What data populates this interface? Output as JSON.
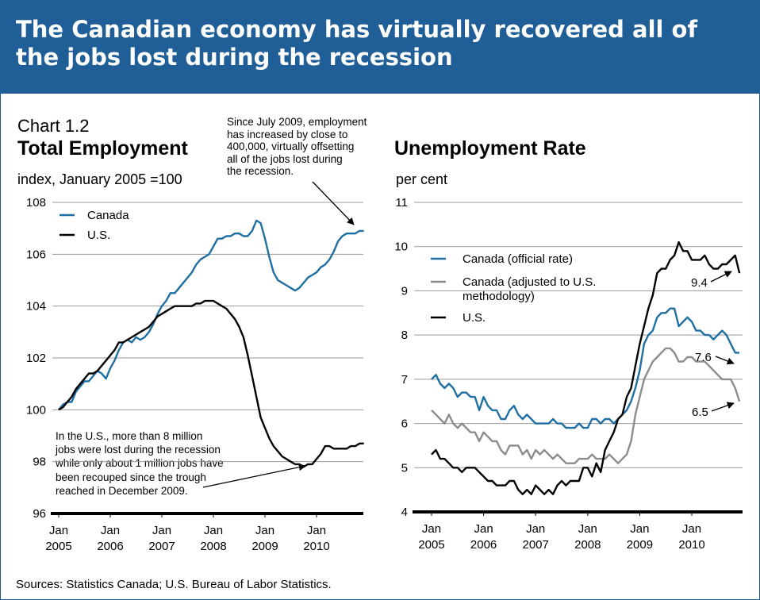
{
  "banner": {
    "title": "The Canadian economy has virtually recovered all of the jobs lost during the recession"
  },
  "chart_number": "Chart 1.2",
  "footer": {
    "source": "Sources: Statistics Canada; U.S. Bureau of Labor Statistics."
  },
  "colors": {
    "banner": "#1f5e96",
    "canada": "#1f6fa3",
    "canada_adjusted": "#8c8c8c",
    "us": "#000000"
  },
  "chart_data": [
    {
      "type": "line",
      "title": "Total Employment",
      "ylabel": "index, January 2005 =100",
      "ylim": [
        96,
        108
      ],
      "yticks": [
        96,
        98,
        100,
        102,
        104,
        106,
        108
      ],
      "x_range": [
        "2005-01",
        "2010-12"
      ],
      "x_tick_labels": [
        {
          "month": "Jan",
          "year": "2005"
        },
        {
          "month": "Jan",
          "year": "2006"
        },
        {
          "month": "Jan",
          "year": "2007"
        },
        {
          "month": "Jan",
          "year": "2008"
        },
        {
          "month": "Jan",
          "year": "2009"
        },
        {
          "month": "Jan",
          "year": "2010"
        }
      ],
      "legend_position": "top-left",
      "grid": "horizontal",
      "annotations": [
        "Since July 2009, employment\nhas increased by close to\n400,000, virtually offsetting\nall of the jobs lost during\nthe recession.",
        "In the U.S., more than 8 million\njobs were lost during the recession\nwhile only about 1 million jobs have\nbeen recouped since the trough\nreached in December 2009."
      ],
      "series": [
        {
          "name": "Canada",
          "color": "#1f6fa3",
          "values": [
            100.0,
            100.2,
            100.3,
            100.3,
            100.7,
            100.9,
            101.1,
            101.1,
            101.3,
            101.5,
            101.4,
            101.2,
            101.6,
            101.9,
            102.3,
            102.6,
            102.7,
            102.6,
            102.8,
            102.7,
            102.8,
            103.0,
            103.3,
            103.7,
            104.0,
            104.2,
            104.5,
            104.5,
            104.7,
            104.9,
            105.1,
            105.3,
            105.6,
            105.8,
            105.9,
            106.0,
            106.3,
            106.6,
            106.6,
            106.7,
            106.7,
            106.8,
            106.8,
            106.7,
            106.7,
            106.9,
            107.3,
            107.2,
            106.6,
            105.9,
            105.3,
            105.0,
            104.9,
            104.8,
            104.7,
            104.6,
            104.7,
            104.9,
            105.1,
            105.2,
            105.3,
            105.5,
            105.6,
            105.8,
            106.1,
            106.5,
            106.7,
            106.8,
            106.8,
            106.8,
            106.9,
            106.9
          ]
        },
        {
          "name": "U.S.",
          "color": "#000000",
          "values": [
            100.0,
            100.1,
            100.3,
            100.5,
            100.8,
            101.0,
            101.2,
            101.4,
            101.4,
            101.5,
            101.7,
            101.9,
            102.1,
            102.3,
            102.6,
            102.6,
            102.7,
            102.8,
            102.9,
            103.0,
            103.1,
            103.2,
            103.4,
            103.6,
            103.7,
            103.8,
            103.9,
            104.0,
            104.0,
            104.0,
            104.0,
            104.0,
            104.1,
            104.1,
            104.2,
            104.2,
            104.2,
            104.1,
            104.0,
            103.9,
            103.7,
            103.5,
            103.2,
            102.8,
            102.1,
            101.3,
            100.5,
            99.7,
            99.3,
            98.9,
            98.6,
            98.4,
            98.2,
            98.1,
            98.0,
            97.9,
            97.9,
            97.8,
            97.9,
            97.9,
            98.1,
            98.3,
            98.6,
            98.6,
            98.5,
            98.5,
            98.5,
            98.5,
            98.6,
            98.6,
            98.7,
            98.7
          ]
        }
      ]
    },
    {
      "type": "line",
      "title": "Unemployment Rate",
      "ylabel": "per cent",
      "ylim": [
        4,
        11
      ],
      "yticks": [
        4,
        5,
        6,
        7,
        8,
        9,
        10,
        11
      ],
      "x_range": [
        "2005-01",
        "2010-12"
      ],
      "x_tick_labels": [
        {
          "month": "Jan",
          "year": "2005"
        },
        {
          "month": "Jan",
          "year": "2006"
        },
        {
          "month": "Jan",
          "year": "2007"
        },
        {
          "month": "Jan",
          "year": "2008"
        },
        {
          "month": "Jan",
          "year": "2009"
        },
        {
          "month": "Jan",
          "year": "2010"
        }
      ],
      "legend_position": "center-left",
      "grid": "horizontal",
      "end_labels": [
        "9.4",
        "7.6",
        "6.5"
      ],
      "series": [
        {
          "name": "Canada (official rate)",
          "color": "#1f6fa3",
          "end_label": "7.6",
          "values": [
            7.0,
            7.1,
            6.9,
            6.8,
            6.9,
            6.8,
            6.6,
            6.7,
            6.7,
            6.6,
            6.6,
            6.3,
            6.6,
            6.4,
            6.3,
            6.3,
            6.1,
            6.1,
            6.3,
            6.4,
            6.2,
            6.1,
            6.2,
            6.1,
            6.0,
            6.0,
            6.0,
            6.0,
            6.1,
            6.0,
            6.0,
            5.9,
            5.9,
            5.9,
            6.0,
            5.9,
            5.9,
            6.1,
            6.1,
            6.0,
            6.1,
            6.1,
            6.0,
            6.1,
            6.2,
            6.3,
            6.5,
            6.8,
            7.2,
            7.8,
            8.0,
            8.1,
            8.4,
            8.5,
            8.5,
            8.6,
            8.6,
            8.2,
            8.3,
            8.4,
            8.3,
            8.1,
            8.1,
            8.0,
            8.0,
            7.9,
            8.0,
            8.1,
            8.0,
            7.8,
            7.6,
            7.6
          ]
        },
        {
          "name": "Canada (adjusted to U.S. methodology)",
          "color": "#8c8c8c",
          "end_label": "6.5",
          "values": [
            6.3,
            6.2,
            6.1,
            6.0,
            6.2,
            6.0,
            5.9,
            6.0,
            5.9,
            5.8,
            5.8,
            5.6,
            5.8,
            5.7,
            5.6,
            5.6,
            5.4,
            5.3,
            5.5,
            5.5,
            5.5,
            5.3,
            5.4,
            5.2,
            5.4,
            5.3,
            5.4,
            5.3,
            5.2,
            5.3,
            5.2,
            5.1,
            5.1,
            5.1,
            5.2,
            5.2,
            5.2,
            5.3,
            5.2,
            5.2,
            5.2,
            5.3,
            5.2,
            5.1,
            5.2,
            5.3,
            5.6,
            6.2,
            6.6,
            7.0,
            7.2,
            7.4,
            7.5,
            7.6,
            7.7,
            7.7,
            7.6,
            7.4,
            7.4,
            7.5,
            7.5,
            7.4,
            7.4,
            7.4,
            7.3,
            7.2,
            7.1,
            7.0,
            7.0,
            7.0,
            6.8,
            6.5
          ]
        },
        {
          "name": "U.S.",
          "color": "#000000",
          "end_label": "9.4",
          "values": [
            5.3,
            5.4,
            5.2,
            5.2,
            5.1,
            5.0,
            5.0,
            4.9,
            5.0,
            5.0,
            5.0,
            4.9,
            4.8,
            4.7,
            4.7,
            4.6,
            4.6,
            4.6,
            4.7,
            4.7,
            4.5,
            4.4,
            4.5,
            4.4,
            4.6,
            4.5,
            4.4,
            4.5,
            4.4,
            4.6,
            4.7,
            4.6,
            4.7,
            4.7,
            4.7,
            5.0,
            5.0,
            4.8,
            5.1,
            4.9,
            5.4,
            5.6,
            5.8,
            6.1,
            6.2,
            6.6,
            6.8,
            7.3,
            7.8,
            8.2,
            8.6,
            8.9,
            9.4,
            9.5,
            9.5,
            9.7,
            9.8,
            10.1,
            9.9,
            9.9,
            9.7,
            9.7,
            9.7,
            9.8,
            9.6,
            9.5,
            9.5,
            9.6,
            9.6,
            9.7,
            9.8,
            9.4
          ]
        }
      ]
    }
  ]
}
